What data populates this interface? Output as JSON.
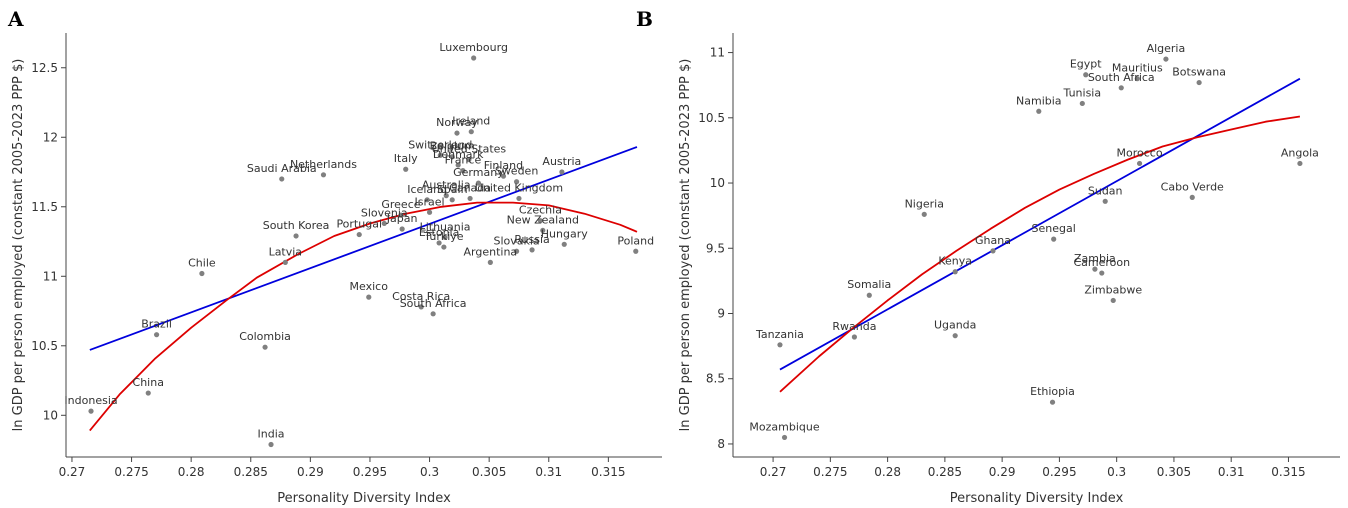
{
  "chart_data": [
    {
      "panel": "A",
      "type": "scatter",
      "xlabel": "Personality Diversity Index",
      "ylabel": "ln GDP per person employed (constant 2005-2023 PPP $)",
      "xlim": [
        0.2695,
        0.3195
      ],
      "ylim": [
        9.7,
        12.75
      ],
      "xticks": [
        0.27,
        0.275,
        0.28,
        0.285,
        0.29,
        0.295,
        0.3,
        0.305,
        0.31,
        0.315
      ],
      "yticks": [
        10,
        10.5,
        11,
        11.5,
        12,
        12.5
      ],
      "grid": false,
      "colors": {
        "points": "#808080",
        "linear_fit": "#0000dd",
        "quadratic_fit": "#dd0000"
      },
      "points": [
        {
          "label": "Luxembourg",
          "x": 0.3037,
          "y": 12.57
        },
        {
          "label": "Ireland",
          "x": 0.3035,
          "y": 12.04
        },
        {
          "label": "Norway",
          "x": 0.3023,
          "y": 12.03
        },
        {
          "label": "Switzerland",
          "x": 0.3009,
          "y": 11.87
        },
        {
          "label": "Belgium",
          "x": 0.3019,
          "y": 11.86
        },
        {
          "label": "United States",
          "x": 0.3033,
          "y": 11.84
        },
        {
          "label": "Denmark",
          "x": 0.3024,
          "y": 11.8
        },
        {
          "label": "France",
          "x": 0.3028,
          "y": 11.76
        },
        {
          "label": "Finland",
          "x": 0.3062,
          "y": 11.72
        },
        {
          "label": "Sweden",
          "x": 0.3073,
          "y": 11.68
        },
        {
          "label": "Germany",
          "x": 0.3041,
          "y": 11.67
        },
        {
          "label": "Italy",
          "x": 0.298,
          "y": 11.77
        },
        {
          "label": "Austria",
          "x": 0.3111,
          "y": 11.75
        },
        {
          "label": "Saudi Arabia",
          "x": 0.2876,
          "y": 11.7
        },
        {
          "label": "Netherlands",
          "x": 0.2911,
          "y": 11.73
        },
        {
          "label": "Australia",
          "x": 0.3014,
          "y": 11.58
        },
        {
          "label": "Iceland",
          "x": 0.2998,
          "y": 11.55
        },
        {
          "label": "Spain",
          "x": 0.3019,
          "y": 11.55
        },
        {
          "label": "Canada",
          "x": 0.3034,
          "y": 11.56
        },
        {
          "label": "United Kingdom",
          "x": 0.3075,
          "y": 11.56
        },
        {
          "label": "Greece",
          "x": 0.2976,
          "y": 11.44
        },
        {
          "label": "Israel",
          "x": 0.3,
          "y": 11.46
        },
        {
          "label": "Slovenia",
          "x": 0.2962,
          "y": 11.38
        },
        {
          "label": "Japan",
          "x": 0.2977,
          "y": 11.34
        },
        {
          "label": "Czechia",
          "x": 0.3093,
          "y": 11.4
        },
        {
          "label": "New Zealand",
          "x": 0.3095,
          "y": 11.33
        },
        {
          "label": "South Korea",
          "x": 0.2888,
          "y": 11.29
        },
        {
          "label": "Portugal",
          "x": 0.2941,
          "y": 11.3
        },
        {
          "label": "Lithuania",
          "x": 0.3013,
          "y": 11.28
        },
        {
          "label": "Estonia",
          "x": 0.3008,
          "y": 11.24
        },
        {
          "label": "Türkiye",
          "x": 0.3012,
          "y": 11.21
        },
        {
          "label": "Slovakia",
          "x": 0.3073,
          "y": 11.18
        },
        {
          "label": "Russia",
          "x": 0.3086,
          "y": 11.19
        },
        {
          "label": "Hungary",
          "x": 0.3113,
          "y": 11.23
        },
        {
          "label": "Poland",
          "x": 0.3173,
          "y": 11.18
        },
        {
          "label": "Latvia",
          "x": 0.2879,
          "y": 11.1
        },
        {
          "label": "Argentina",
          "x": 0.3051,
          "y": 11.1
        },
        {
          "label": "Chile",
          "x": 0.2809,
          "y": 11.02
        },
        {
          "label": "Mexico",
          "x": 0.2949,
          "y": 10.85
        },
        {
          "label": "Costa Rica",
          "x": 0.2993,
          "y": 10.78
        },
        {
          "label": "South Africa",
          "x": 0.3003,
          "y": 10.73
        },
        {
          "label": "Brazil",
          "x": 0.2771,
          "y": 10.58
        },
        {
          "label": "Colombia",
          "x": 0.2862,
          "y": 10.49
        },
        {
          "label": "China",
          "x": 0.2764,
          "y": 10.16
        },
        {
          "label": "Indonesia",
          "x": 0.2716,
          "y": 10.03
        },
        {
          "label": "India",
          "x": 0.2867,
          "y": 9.79
        }
      ],
      "linear_fit": {
        "x": [
          0.2715,
          0.3174
        ],
        "y": [
          10.47,
          11.93
        ]
      },
      "quadratic_fit": {
        "x": [
          0.2715,
          0.274,
          0.277,
          0.28,
          0.283,
          0.2855,
          0.289,
          0.292,
          0.295,
          0.298,
          0.301,
          0.304,
          0.307,
          0.31,
          0.313,
          0.316,
          0.3174
        ],
        "y": [
          9.89,
          10.15,
          10.41,
          10.63,
          10.83,
          10.99,
          11.16,
          11.29,
          11.38,
          11.45,
          11.5,
          11.53,
          11.53,
          11.51,
          11.45,
          11.37,
          11.32
        ]
      }
    },
    {
      "panel": "B",
      "type": "scatter",
      "xlabel": "Personality Diversity Index",
      "ylabel": "ln GDP per person employed (constant 2005-2023 PPP $)",
      "xlim": [
        0.2665,
        0.3195
      ],
      "ylim": [
        7.9,
        11.15
      ],
      "xticks": [
        0.27,
        0.275,
        0.28,
        0.285,
        0.29,
        0.295,
        0.3,
        0.305,
        0.31,
        0.315
      ],
      "yticks": [
        8,
        8.5,
        9,
        9.5,
        10,
        10.5,
        11
      ],
      "grid": false,
      "colors": {
        "points": "#808080",
        "linear_fit": "#0000dd",
        "quadratic_fit": "#dd0000"
      },
      "points": [
        {
          "label": "Algeria",
          "x": 0.3043,
          "y": 10.95
        },
        {
          "label": "Egypt",
          "x": 0.2973,
          "y": 10.83
        },
        {
          "label": "Mauritius",
          "x": 0.3018,
          "y": 10.8
        },
        {
          "label": "South Africa",
          "x": 0.3004,
          "y": 10.73
        },
        {
          "label": "Botswana",
          "x": 0.3072,
          "y": 10.77
        },
        {
          "label": "Tunisia",
          "x": 0.297,
          "y": 10.61
        },
        {
          "label": "Namibia",
          "x": 0.2932,
          "y": 10.55
        },
        {
          "label": "Morocco",
          "x": 0.302,
          "y": 10.15
        },
        {
          "label": "Angola",
          "x": 0.316,
          "y": 10.15
        },
        {
          "label": "Sudan",
          "x": 0.299,
          "y": 9.86
        },
        {
          "label": "Cabo Verde",
          "x": 0.3066,
          "y": 9.89
        },
        {
          "label": "Nigeria",
          "x": 0.2832,
          "y": 9.76
        },
        {
          "label": "Senegal",
          "x": 0.2945,
          "y": 9.57
        },
        {
          "label": "Ghana",
          "x": 0.2892,
          "y": 9.48
        },
        {
          "label": "Kenya",
          "x": 0.2859,
          "y": 9.32
        },
        {
          "label": "Zambia",
          "x": 0.2981,
          "y": 9.34
        },
        {
          "label": "Cameroon",
          "x": 0.2987,
          "y": 9.31
        },
        {
          "label": "Zimbabwe",
          "x": 0.2997,
          "y": 9.1
        },
        {
          "label": "Somalia",
          "x": 0.2784,
          "y": 9.14
        },
        {
          "label": "Rwanda",
          "x": 0.2771,
          "y": 8.82
        },
        {
          "label": "Uganda",
          "x": 0.2859,
          "y": 8.83
        },
        {
          "label": "Tanzania",
          "x": 0.2706,
          "y": 8.76
        },
        {
          "label": "Ethiopia",
          "x": 0.2944,
          "y": 8.32
        },
        {
          "label": "Mozambique",
          "x": 0.271,
          "y": 8.05
        }
      ],
      "linear_fit": {
        "x": [
          0.2706,
          0.316
        ],
        "y": [
          8.57,
          10.8
        ]
      },
      "quadratic_fit": {
        "x": [
          0.2706,
          0.274,
          0.277,
          0.28,
          0.283,
          0.286,
          0.289,
          0.292,
          0.295,
          0.298,
          0.301,
          0.304,
          0.307,
          0.31,
          0.313,
          0.316
        ],
        "y": [
          8.4,
          8.67,
          8.89,
          9.1,
          9.3,
          9.48,
          9.65,
          9.81,
          9.95,
          10.07,
          10.18,
          10.28,
          10.35,
          10.41,
          10.47,
          10.51
        ]
      }
    }
  ]
}
